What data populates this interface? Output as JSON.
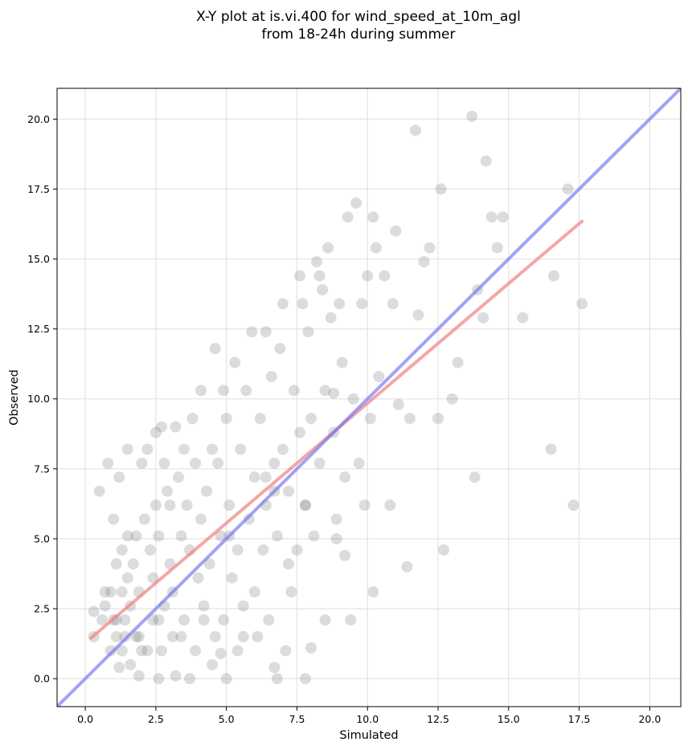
{
  "chart_data": {
    "type": "scatter",
    "title": [
      "X-Y plot at is.vi.400 for wind_speed_at_10m_agl",
      "from 18-24h during summer"
    ],
    "xlabel": "Simulated",
    "ylabel": "Observed",
    "xlim": [
      -1.0,
      21.1
    ],
    "ylim": [
      -1.0,
      21.1
    ],
    "xticks": [
      0.0,
      2.5,
      5.0,
      7.5,
      10.0,
      12.5,
      15.0,
      17.5,
      20.0
    ],
    "yticks": [
      0.0,
      2.5,
      5.0,
      7.5,
      10.0,
      12.5,
      15.0,
      17.5,
      20.0
    ],
    "xtick_labels": [
      "0.0",
      "2.5",
      "5.0",
      "7.5",
      "10.0",
      "12.5",
      "15.0",
      "17.5",
      "20.0"
    ],
    "ytick_labels": [
      "0.0",
      "2.5",
      "5.0",
      "7.5",
      "10.0",
      "12.5",
      "15.0",
      "17.5",
      "20.0"
    ],
    "grid": true,
    "point_color": "#808080",
    "points": [
      [
        0.3,
        2.4
      ],
      [
        0.3,
        1.5
      ],
      [
        0.5,
        6.7
      ],
      [
        0.6,
        2.1
      ],
      [
        0.7,
        3.1
      ],
      [
        0.7,
        2.6
      ],
      [
        0.8,
        7.7
      ],
      [
        0.9,
        3.1
      ],
      [
        0.9,
        1.0
      ],
      [
        1.0,
        2.1
      ],
      [
        1.0,
        5.7
      ],
      [
        1.1,
        4.1
      ],
      [
        1.1,
        1.5
      ],
      [
        1.2,
        7.2
      ],
      [
        1.2,
        0.4
      ],
      [
        1.3,
        4.6
      ],
      [
        1.3,
        3.1
      ],
      [
        1.3,
        1.0
      ],
      [
        1.4,
        2.1
      ],
      [
        1.4,
        1.5
      ],
      [
        1.5,
        8.2
      ],
      [
        1.5,
        5.1
      ],
      [
        1.5,
        3.6
      ],
      [
        1.6,
        0.5
      ],
      [
        1.6,
        2.6
      ],
      [
        1.7,
        4.1
      ],
      [
        1.8,
        5.1
      ],
      [
        1.8,
        1.5
      ],
      [
        1.9,
        0.1
      ],
      [
        1.9,
        3.1
      ],
      [
        2.0,
        7.7
      ],
      [
        2.0,
        1.0
      ],
      [
        2.1,
        5.7
      ],
      [
        2.2,
        8.2
      ],
      [
        2.3,
        4.6
      ],
      [
        2.4,
        2.1
      ],
      [
        2.4,
        3.6
      ],
      [
        2.5,
        8.8
      ],
      [
        2.5,
        6.2
      ],
      [
        2.6,
        0.0
      ],
      [
        2.6,
        5.1
      ],
      [
        2.7,
        9.0
      ],
      [
        2.7,
        1.0
      ],
      [
        2.8,
        7.7
      ],
      [
        2.8,
        2.6
      ],
      [
        2.9,
        6.7
      ],
      [
        3.0,
        4.1
      ],
      [
        3.1,
        3.1
      ],
      [
        3.1,
        1.5
      ],
      [
        3.2,
        9.0
      ],
      [
        3.2,
        0.1
      ],
      [
        3.3,
        7.2
      ],
      [
        3.4,
        5.1
      ],
      [
        3.5,
        8.2
      ],
      [
        3.5,
        2.1
      ],
      [
        3.6,
        6.2
      ],
      [
        3.7,
        0.0
      ],
      [
        3.7,
        4.6
      ],
      [
        3.8,
        9.3
      ],
      [
        3.9,
        7.7
      ],
      [
        3.9,
        1.0
      ],
      [
        4.0,
        3.6
      ],
      [
        4.1,
        10.3
      ],
      [
        4.1,
        5.7
      ],
      [
        4.2,
        2.6
      ],
      [
        4.3,
        6.7
      ],
      [
        4.4,
        4.1
      ],
      [
        4.5,
        0.5
      ],
      [
        4.5,
        8.2
      ],
      [
        4.6,
        11.8
      ],
      [
        4.6,
        1.5
      ],
      [
        4.7,
        7.7
      ],
      [
        4.8,
        5.1
      ],
      [
        4.9,
        10.3
      ],
      [
        4.9,
        2.1
      ],
      [
        5.0,
        9.3
      ],
      [
        5.0,
        0.0
      ],
      [
        5.1,
        6.2
      ],
      [
        5.2,
        3.6
      ],
      [
        5.3,
        11.3
      ],
      [
        5.4,
        4.6
      ],
      [
        5.4,
        1.0
      ],
      [
        5.5,
        8.2
      ],
      [
        5.6,
        2.6
      ],
      [
        5.7,
        10.3
      ],
      [
        5.8,
        5.7
      ],
      [
        5.9,
        12.4
      ],
      [
        6.0,
        7.2
      ],
      [
        6.0,
        3.1
      ],
      [
        6.1,
        1.5
      ],
      [
        6.2,
        9.3
      ],
      [
        6.3,
        4.6
      ],
      [
        6.4,
        12.4
      ],
      [
        6.4,
        6.2
      ],
      [
        6.5,
        2.1
      ],
      [
        6.6,
        10.8
      ],
      [
        6.7,
        0.4
      ],
      [
        6.7,
        7.7
      ],
      [
        6.8,
        5.1
      ],
      [
        6.8,
        0.0
      ],
      [
        6.9,
        11.8
      ],
      [
        7.0,
        13.4
      ],
      [
        7.0,
        8.2
      ],
      [
        7.1,
        1.0
      ],
      [
        7.2,
        6.7
      ],
      [
        7.3,
        3.1
      ],
      [
        7.4,
        10.3
      ],
      [
        7.5,
        4.6
      ],
      [
        7.6,
        14.4
      ],
      [
        7.6,
        8.8
      ],
      [
        7.7,
        13.4
      ],
      [
        7.8,
        -0.0
      ],
      [
        7.8,
        6.2
      ],
      [
        7.9,
        12.4
      ],
      [
        8.0,
        1.1
      ],
      [
        8.0,
        9.3
      ],
      [
        8.1,
        5.1
      ],
      [
        8.2,
        14.9
      ],
      [
        8.3,
        7.7
      ],
      [
        8.4,
        13.9
      ],
      [
        8.5,
        2.1
      ],
      [
        8.5,
        10.3
      ],
      [
        8.6,
        15.4
      ],
      [
        8.7,
        12.9
      ],
      [
        8.8,
        8.8
      ],
      [
        8.9,
        5.7
      ],
      [
        9.0,
        13.4
      ],
      [
        9.1,
        11.3
      ],
      [
        9.2,
        7.2
      ],
      [
        9.3,
        16.5
      ],
      [
        9.4,
        2.1
      ],
      [
        9.5,
        10.0
      ],
      [
        9.6,
        17.0
      ],
      [
        9.7,
        7.7
      ],
      [
        9.8,
        13.4
      ],
      [
        9.9,
        6.2
      ],
      [
        10.0,
        14.4
      ],
      [
        10.1,
        9.3
      ],
      [
        10.2,
        16.5
      ],
      [
        10.2,
        3.1
      ],
      [
        10.3,
        15.4
      ],
      [
        10.4,
        10.8
      ],
      [
        10.6,
        14.4
      ],
      [
        10.8,
        6.2
      ],
      [
        10.9,
        13.4
      ],
      [
        11.0,
        16.0
      ],
      [
        11.1,
        9.8
      ],
      [
        11.4,
        4.0
      ],
      [
        11.5,
        9.3
      ],
      [
        11.7,
        19.6
      ],
      [
        11.8,
        13.0
      ],
      [
        12.0,
        14.9
      ],
      [
        12.2,
        15.4
      ],
      [
        12.5,
        9.3
      ],
      [
        12.6,
        17.5
      ],
      [
        12.7,
        4.6
      ],
      [
        13.0,
        10.0
      ],
      [
        13.2,
        11.3
      ],
      [
        13.7,
        20.1
      ],
      [
        13.8,
        7.2
      ],
      [
        13.9,
        13.9
      ],
      [
        14.1,
        12.9
      ],
      [
        14.2,
        18.5
      ],
      [
        14.4,
        16.5
      ],
      [
        14.6,
        15.4
      ],
      [
        14.8,
        16.5
      ],
      [
        15.5,
        12.9
      ],
      [
        16.5,
        8.2
      ],
      [
        16.6,
        14.4
      ],
      [
        17.1,
        17.5
      ],
      [
        17.3,
        6.2
      ],
      [
        17.6,
        13.4
      ],
      [
        8.3,
        14.4
      ],
      [
        8.8,
        10.2
      ],
      [
        4.2,
        2.1
      ],
      [
        3.0,
        6.2
      ],
      [
        2.2,
        1.0
      ],
      [
        1.1,
        2.1
      ],
      [
        5.1,
        5.1
      ],
      [
        6.4,
        7.2
      ],
      [
        6.7,
        6.7
      ],
      [
        7.2,
        4.1
      ],
      [
        7.8,
        6.2
      ],
      [
        8.9,
        5.0
      ],
      [
        9.2,
        4.4
      ],
      [
        5.6,
        1.5
      ],
      [
        4.8,
        0.9
      ],
      [
        3.4,
        1.5
      ],
      [
        2.6,
        2.1
      ],
      [
        1.9,
        1.5
      ]
    ],
    "regression_line": {
      "color": "#f08080",
      "x": [
        0.2,
        17.6
      ],
      "y": [
        1.45,
        16.35
      ]
    },
    "identity_line": {
      "color": "#7070f0",
      "x": [
        -1.0,
        21.1
      ],
      "y": [
        -1.0,
        21.1
      ]
    }
  }
}
